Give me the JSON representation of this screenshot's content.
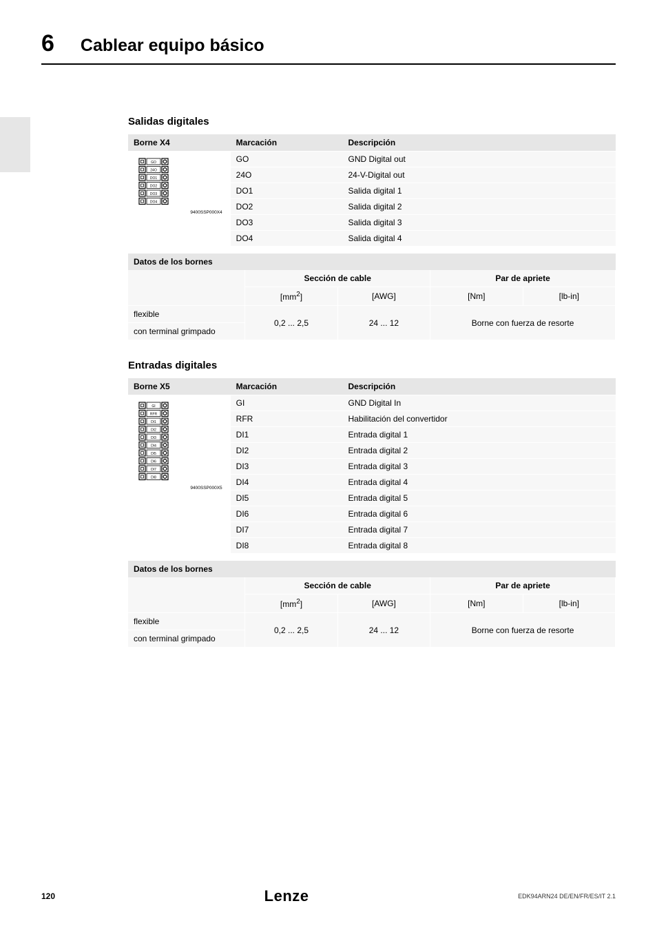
{
  "header": {
    "chapter_number": "6",
    "chapter_title": "Cablear equipo básico"
  },
  "section1": {
    "title": "Salidas digitales",
    "terminal_header": "Borne X4",
    "col_mark": "Marcación",
    "col_desc": "Descripción",
    "caption": "9400SSP000X4",
    "rows": [
      {
        "mark": "GO",
        "desc": "GND Digital out"
      },
      {
        "mark": "24O",
        "desc": "24-V-Digital out"
      },
      {
        "mark": "DO1",
        "desc": "Salida digital 1"
      },
      {
        "mark": "DO2",
        "desc": "Salida digital 2"
      },
      {
        "mark": "DO3",
        "desc": "Salida digital 3"
      },
      {
        "mark": "DO4",
        "desc": "Salida digital 4"
      }
    ]
  },
  "bornes1": {
    "title": "Datos de los bornes",
    "h_seccion": "Sección de cable",
    "h_par": "Par de apriete",
    "u_mm": "[mm2]",
    "u_awg": "[AWG]",
    "u_nm": "[Nm]",
    "u_lbin": "[lb-in]",
    "row1": "flexible",
    "row2": "con terminal grimpado",
    "val_mm": "0,2 ... 2,5",
    "val_awg": "24 ... 12",
    "val_fuerza": "Borne con fuerza de resorte"
  },
  "section2": {
    "title": "Entradas digitales",
    "terminal_header": "Borne X5",
    "col_mark": "Marcación",
    "col_desc": "Descripción",
    "caption": "9400SSP000X5",
    "rows": [
      {
        "mark": "GI",
        "desc": "GND Digital In"
      },
      {
        "mark": "RFR",
        "desc": "Habilitación del convertidor"
      },
      {
        "mark": "DI1",
        "desc": "Entrada digital 1"
      },
      {
        "mark": "DI2",
        "desc": "Entrada digital 2"
      },
      {
        "mark": "DI3",
        "desc": "Entrada digital 3"
      },
      {
        "mark": "DI4",
        "desc": "Entrada digital 4"
      },
      {
        "mark": "DI5",
        "desc": "Entrada digital 5"
      },
      {
        "mark": "DI6",
        "desc": "Entrada digital 6"
      },
      {
        "mark": "DI7",
        "desc": "Entrada digital 7"
      },
      {
        "mark": "DI8",
        "desc": "Entrada digital 8"
      }
    ]
  },
  "footer": {
    "page": "120",
    "logo": "Lenze",
    "doc": "EDK94ARN24  DE/EN/FR/ES/IT  2.1"
  },
  "style": {
    "bg_header": "#e6e6e6",
    "bg_cell": "#f7f7f7"
  },
  "icons": {
    "terminal_labels_x4": [
      "GO",
      "24O",
      "DO1",
      "DO2",
      "DO3",
      "DO4"
    ],
    "terminal_labels_x5": [
      "GI",
      "RFR",
      "DI1",
      "DI2",
      "DI3",
      "DI4",
      "DI5",
      "DI6",
      "DI7",
      "DI8"
    ]
  }
}
